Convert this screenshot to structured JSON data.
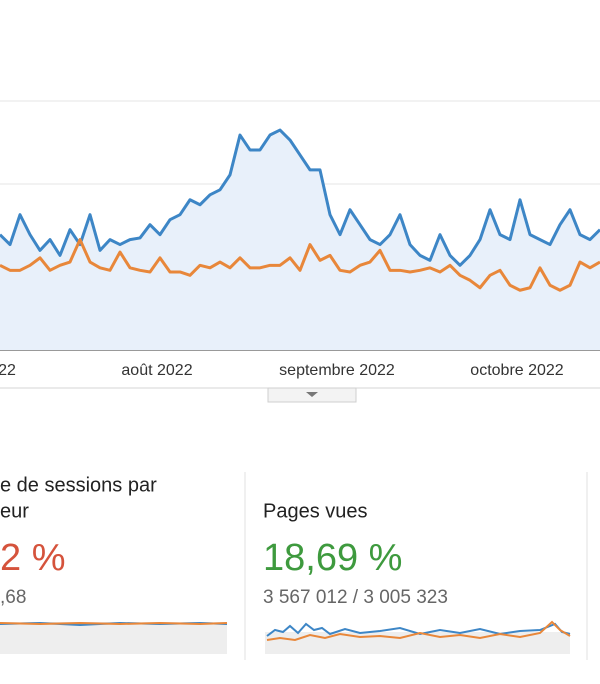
{
  "chart_data": {
    "type": "line",
    "categories": [
      null,
      "22",
      null,
      null,
      null,
      null,
      null,
      null,
      null,
      null,
      null,
      null,
      null,
      null,
      null,
      null,
      "août 2022",
      null,
      null,
      null,
      null,
      null,
      null,
      null,
      null,
      null,
      null,
      null,
      null,
      null,
      null,
      null,
      null,
      null,
      "septembre 2022",
      null,
      null,
      null,
      null,
      null,
      null,
      null,
      null,
      null,
      null,
      null,
      null,
      null,
      null,
      null,
      null,
      null,
      "octobre 2022",
      null,
      null,
      null,
      null,
      null,
      null,
      null,
      null
    ],
    "series": [
      {
        "color": "#3d86c6",
        "values": [
          1.39,
          1.27,
          1.63,
          1.39,
          1.2,
          1.33,
          1.14,
          1.45,
          1.27,
          1.63,
          1.2,
          1.33,
          1.27,
          1.33,
          1.35,
          1.51,
          1.39,
          1.57,
          1.63,
          1.81,
          1.75,
          1.87,
          1.93,
          2.11,
          2.59,
          2.41,
          2.41,
          2.59,
          2.65,
          2.53,
          2.35,
          2.17,
          2.17,
          1.63,
          1.39,
          1.69,
          1.51,
          1.33,
          1.27,
          1.39,
          1.63,
          1.27,
          1.14,
          1.08,
          1.39,
          1.14,
          1.02,
          1.14,
          1.33,
          1.69,
          1.39,
          1.33,
          1.81,
          1.39,
          1.33,
          1.27,
          1.51,
          1.69,
          1.39,
          1.33,
          1.45
        ]
      },
      {
        "color": "#e8873a",
        "values": [
          1.02,
          0.96,
          0.96,
          1.02,
          1.11,
          0.96,
          1.02,
          1.06,
          1.33,
          1.06,
          0.99,
          0.96,
          1.18,
          0.99,
          0.96,
          0.94,
          1.11,
          0.94,
          0.94,
          0.9,
          1.02,
          0.99,
          1.06,
          0.99,
          1.11,
          0.99,
          0.99,
          1.02,
          1.02,
          1.11,
          0.96,
          1.27,
          1.08,
          1.14,
          0.96,
          0.94,
          1.02,
          1.06,
          1.2,
          0.96,
          0.96,
          0.94,
          0.96,
          0.99,
          0.94,
          1.02,
          0.9,
          0.84,
          0.75,
          0.9,
          0.96,
          0.78,
          0.72,
          0.75,
          0.99,
          0.78,
          0.72,
          0.78,
          1.06,
          0.99,
          1.06
        ]
      }
    ],
    "ylim": [
      0,
      3
    ],
    "yticks": [
      0,
      1,
      2,
      3
    ],
    "grid": true,
    "area_fill": "#e8f0fa"
  },
  "cards": [
    {
      "title_lines": [
        "e de sessions par",
        "eur"
      ],
      "change": "2 %",
      "change_color": "#d5533c",
      "detail": ",68"
    },
    {
      "title_lines": [
        "Pages vues"
      ],
      "change": "18,69 %",
      "change_color": "#3e9a3e",
      "detail": "3 567 012 / 3 005 323"
    }
  ]
}
